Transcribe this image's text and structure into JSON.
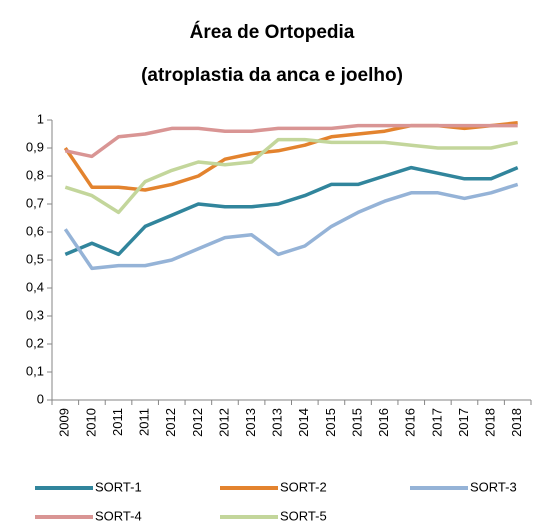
{
  "chart_data": {
    "type": "line",
    "title": "Área de Ortopedia",
    "subtitle": "(atroplastia da anca e joelho)",
    "categories": [
      "2009",
      "2010",
      "2011",
      "2011",
      "2012",
      "2012",
      "2012",
      "2013",
      "2013",
      "2014",
      "2015",
      "2015",
      "2016",
      "2016",
      "2017",
      "2017",
      "2018",
      "2018"
    ],
    "series": [
      {
        "name": "SORT-1",
        "color": "#31859c",
        "values": [
          0.52,
          0.56,
          0.52,
          0.62,
          0.66,
          0.7,
          0.69,
          0.69,
          0.7,
          0.73,
          0.77,
          0.77,
          0.8,
          0.83,
          0.81,
          0.79,
          0.79,
          0.83
        ]
      },
      {
        "name": "SORT-2",
        "color": "#e3832e",
        "values": [
          0.9,
          0.76,
          0.76,
          0.75,
          0.77,
          0.8,
          0.86,
          0.88,
          0.89,
          0.91,
          0.94,
          0.95,
          0.96,
          0.98,
          0.98,
          0.97,
          0.98,
          0.99
        ]
      },
      {
        "name": "SORT-3",
        "color": "#95b3d7",
        "values": [
          0.61,
          0.47,
          0.48,
          0.48,
          0.5,
          0.54,
          0.58,
          0.59,
          0.52,
          0.55,
          0.62,
          0.67,
          0.71,
          0.74,
          0.74,
          0.72,
          0.74,
          0.77
        ]
      },
      {
        "name": "SORT-4",
        "color": "#d99594",
        "values": [
          0.89,
          0.87,
          0.94,
          0.95,
          0.97,
          0.97,
          0.96,
          0.96,
          0.97,
          0.97,
          0.97,
          0.98,
          0.98,
          0.98,
          0.98,
          0.98,
          0.98,
          0.98
        ]
      },
      {
        "name": "SORT-5",
        "color": "#c3d69b",
        "values": [
          0.76,
          0.73,
          0.67,
          0.78,
          0.82,
          0.85,
          0.84,
          0.85,
          0.93,
          0.93,
          0.92,
          0.92,
          0.92,
          0.91,
          0.9,
          0.9,
          0.9,
          0.92
        ]
      }
    ],
    "ylim": [
      0,
      1
    ],
    "yticks": [
      0,
      {
        "value": 0.1,
        "label": "0,1"
      },
      {
        "value": 0.2,
        "label": "0,2"
      },
      {
        "value": 0.3,
        "label": "0,3"
      },
      {
        "value": 0.4,
        "label": "0,4"
      },
      {
        "value": 0.5,
        "label": "0,5"
      },
      {
        "value": 0.6,
        "label": "0,6"
      },
      {
        "value": 0.7,
        "label": "0,7"
      },
      {
        "value": 0.8,
        "label": "0,8"
      },
      {
        "value": 0.9,
        "label": "0,9"
      },
      1
    ],
    "grid": false,
    "legend": "bottom"
  }
}
